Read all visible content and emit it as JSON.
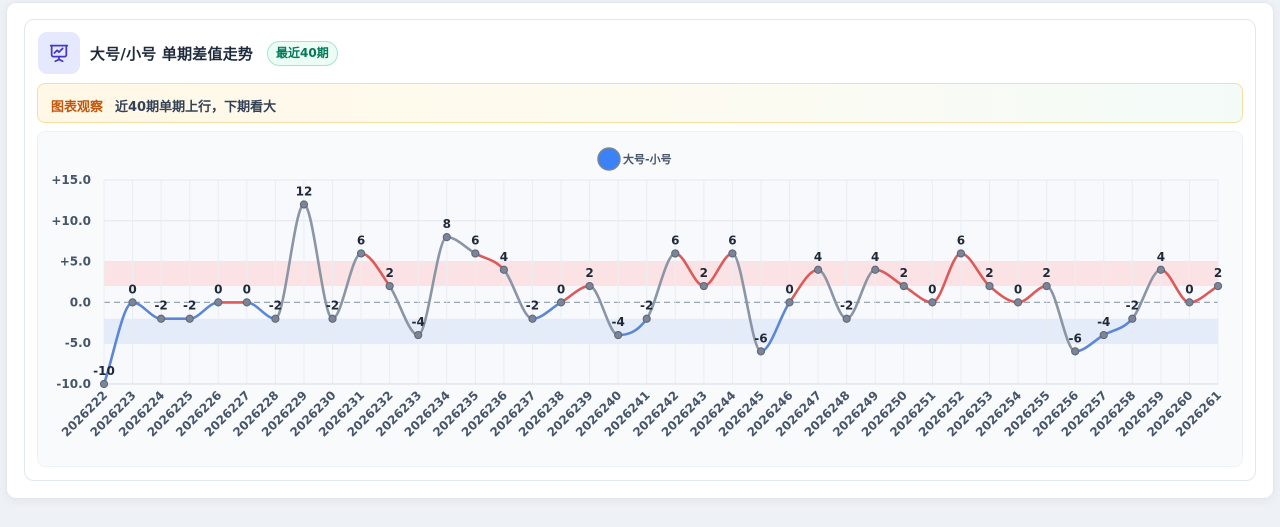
{
  "header": {
    "title": "大号/小号 单期差值走势",
    "badge": "最近40期",
    "icon": "presentation-chart-icon"
  },
  "observation": {
    "label": "图表观察",
    "text": "近40期单期上行，下期看大"
  },
  "colors": {
    "up": "#dc5a5a",
    "down": "#5b87d6",
    "flat": "#8a95a5",
    "legend": "#3b82f6",
    "upper_band": "#fbe3e5",
    "lower_band": "#e4ebf9"
  },
  "chart_data": {
    "type": "line",
    "legend": "大号-小号",
    "legend_position": "top-center",
    "x": [
      "2026222",
      "2026223",
      "2026224",
      "2026225",
      "2026226",
      "2026227",
      "2026228",
      "2026229",
      "2026230",
      "2026231",
      "2026232",
      "2026233",
      "2026234",
      "2026235",
      "2026236",
      "2026237",
      "2026238",
      "2026239",
      "2026240",
      "2026241",
      "2026242",
      "2026243",
      "2026244",
      "2026245",
      "2026246",
      "2026247",
      "2026248",
      "2026249",
      "2026250",
      "2026251",
      "2026252",
      "2026253",
      "2026254",
      "2026255",
      "2026256",
      "2026257",
      "2026258",
      "2026259",
      "2026260",
      "2026261"
    ],
    "series": [
      {
        "name": "大号-小号",
        "values": [
          -10,
          0,
          -2,
          -2,
          0,
          0,
          -2,
          12,
          -2,
          6,
          2,
          -4,
          8,
          6,
          4,
          -2,
          0,
          2,
          -4,
          -2,
          6,
          2,
          6,
          -6,
          0,
          4,
          -2,
          4,
          2,
          0,
          6,
          2,
          0,
          2,
          -6,
          -4,
          -2,
          4,
          0,
          2
        ]
      }
    ],
    "data_labels": [
      "-10",
      "0",
      "-2",
      "-2",
      "0",
      "0",
      "-2",
      "12",
      "-2",
      "6",
      "2",
      "-4",
      "8",
      "6",
      "4",
      "-2",
      "0",
      "2",
      "-4",
      "-2",
      "6",
      "2",
      "6",
      "-6",
      "0",
      "4",
      "-2",
      "4",
      "2",
      "0",
      "6",
      "2",
      "0",
      "2",
      "-6",
      "-4",
      "-2",
      "4",
      "0",
      "2"
    ],
    "y_ticks": [
      "+15.0",
      "+10.0",
      "+5.0",
      "0.0",
      "-5.0",
      "-10.0"
    ],
    "ylim": [
      -10,
      15
    ],
    "bands": {
      "upper": [
        2,
        5
      ],
      "lower": [
        -5,
        -2
      ]
    },
    "zero_line": "dashed",
    "grid": true
  }
}
